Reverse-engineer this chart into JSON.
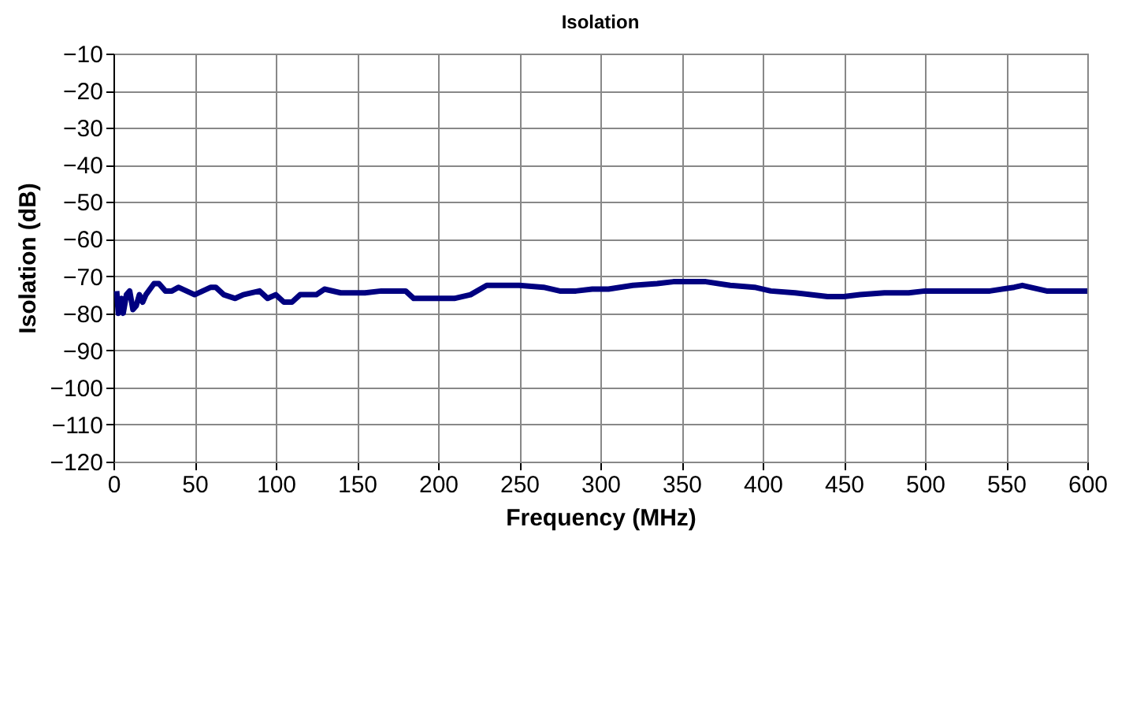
{
  "chart_data": {
    "type": "line",
    "title": "Isolation",
    "xlabel": "Frequency (MHz)",
    "ylabel": "Isolation (dB)",
    "xlim": [
      0,
      600
    ],
    "xticks": [
      0,
      50,
      100,
      150,
      200,
      250,
      300,
      350,
      400,
      450,
      500,
      550,
      600
    ],
    "ylim": [
      -120,
      -10
    ],
    "yticks": [
      -120,
      -110,
      -100,
      -90,
      -80,
      -70,
      -60,
      -50,
      -40,
      -30,
      -20,
      -10
    ],
    "grid": true,
    "series": [
      {
        "color": "#000080",
        "x": [
          2,
          3,
          5,
          6,
          8,
          10,
          12,
          14,
          16,
          18,
          20,
          25,
          28,
          32,
          36,
          40,
          45,
          50,
          55,
          60,
          63,
          68,
          75,
          80,
          90,
          95,
          100,
          105,
          110,
          115,
          125,
          130,
          140,
          155,
          165,
          175,
          180,
          185,
          195,
          200,
          210,
          220,
          230,
          250,
          265,
          275,
          285,
          295,
          305,
          320,
          335,
          345,
          350,
          365,
          380,
          395,
          405,
          420,
          440,
          450,
          460,
          475,
          490,
          500,
          520,
          540,
          555,
          560,
          575,
          590,
          600
        ],
        "values": [
          -74,
          -80,
          -76,
          -80,
          -75,
          -74,
          -79,
          -78,
          -75,
          -77,
          -75,
          -72,
          -72,
          -74,
          -74,
          -73,
          -74,
          -75,
          -74,
          -73,
          -73,
          -75,
          -76,
          -75,
          -74,
          -76,
          -75,
          -77,
          -77,
          -75,
          -75,
          -73.5,
          -74.5,
          -74.5,
          -74,
          -74,
          -74,
          -76,
          -76,
          -76,
          -76,
          -75,
          -72.5,
          -72.5,
          -73,
          -74,
          -74,
          -73.5,
          -73.5,
          -72.5,
          -72,
          -71.5,
          -71.5,
          -71.5,
          -72.5,
          -73,
          -74,
          -74.5,
          -75.5,
          -75.5,
          -75,
          -74.5,
          -74.5,
          -74,
          -74,
          -74,
          -73,
          -72.5,
          -74,
          -74,
          -74
        ]
      }
    ]
  }
}
